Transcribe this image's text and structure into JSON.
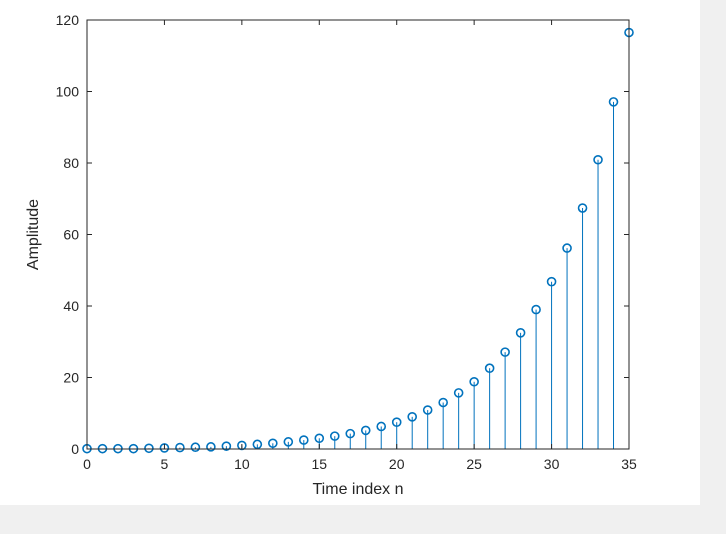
{
  "chart_data": {
    "type": "stem",
    "xlabel": "Time index n",
    "ylabel": "Amplitude",
    "xlim": [
      0,
      35
    ],
    "ylim": [
      0,
      120
    ],
    "xticks": [
      0,
      5,
      10,
      15,
      20,
      25,
      30,
      35
    ],
    "yticks": [
      0,
      20,
      40,
      60,
      80,
      100,
      120
    ],
    "grid": false,
    "series_color": "#0072BD",
    "x": [
      0,
      1,
      2,
      3,
      4,
      5,
      6,
      7,
      8,
      9,
      10,
      11,
      12,
      13,
      14,
      15,
      16,
      17,
      18,
      19,
      20,
      21,
      22,
      23,
      24,
      25,
      26,
      27,
      28,
      29,
      30,
      31,
      32,
      33,
      34,
      35
    ],
    "y": [
      0.1,
      0.1,
      0.1,
      0.1,
      0.2,
      0.3,
      0.4,
      0.5,
      0.6,
      0.8,
      1.0,
      1.3,
      1.6,
      2.0,
      2.5,
      3.0,
      3.6,
      4.3,
      5.2,
      6.3,
      7.5,
      9.0,
      10.9,
      13.0,
      15.7,
      18.8,
      22.6,
      27.1,
      32.5,
      39.0,
      46.8,
      56.2,
      67.4,
      80.9,
      97.1,
      116.5
    ]
  }
}
